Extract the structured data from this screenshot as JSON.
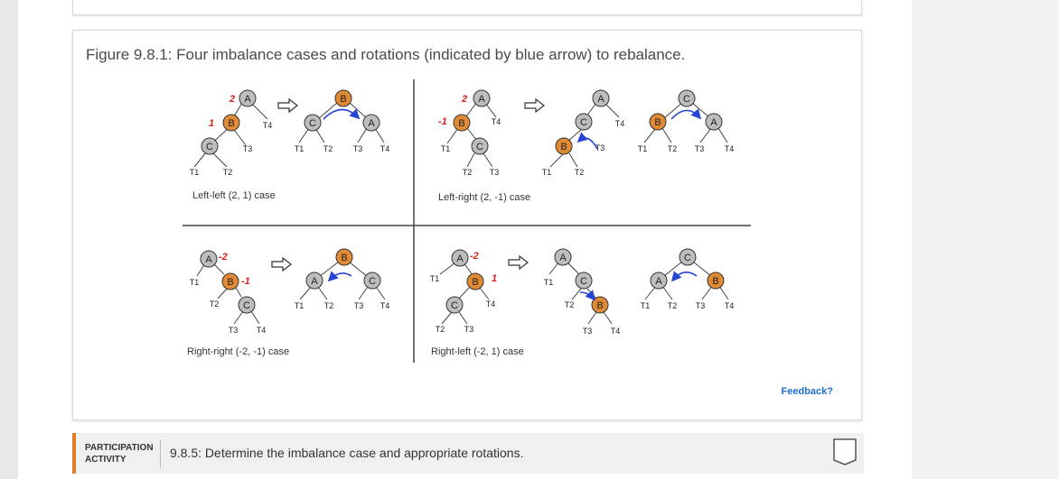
{
  "figure": {
    "caption": "Figure 9.8.1: Four imbalance cases and rotations (indicated by blue arrow) to rebalance.",
    "cases": {
      "left_left": "Left-left (2, 1) case",
      "left_right": "Left-right (2, -1) case",
      "right_right": "Right-right (-2, -1) case",
      "right_left": "Right-left (-2, 1) case"
    },
    "balance_labels": {
      "bf_2": "2",
      "bf_1": "1",
      "bf_neg1": "-1",
      "bf_neg2": "-2"
    },
    "nodes": {
      "a": "A",
      "b": "B",
      "c": "C"
    },
    "subtrees": {
      "t1": "T1",
      "t2": "T2",
      "t3": "T3",
      "t4": "T4"
    },
    "colors": {
      "node_gray": "#bdbdbd",
      "node_orange": "#e08a35",
      "balance_red": "#d9211b",
      "rotation_arrow": "#2646d4"
    },
    "arrow_icon": "hollow-right-arrow-icon",
    "feedback_label": "Feedback?"
  },
  "participation": {
    "label_line1": "PARTICIPATION",
    "label_line2": "ACTIVITY",
    "title": "9.8.5: Determine the imbalance case and appropriate rotations.",
    "checkbox_icon": "completion-checkbox-icon"
  }
}
